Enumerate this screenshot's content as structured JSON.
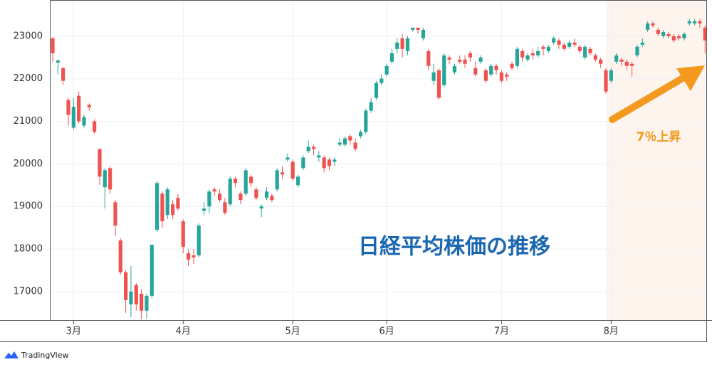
{
  "chart_data": {
    "type": "candlestick",
    "title": "日経平均株価の推移",
    "annotation": "7％上昇",
    "source": "TradingView",
    "up_color": "#26a69a",
    "down_color": "#ef5350",
    "title_color": "#1a66b0",
    "annotation_color": "#f39a1e",
    "grid": true,
    "ylim": [
      16330,
      23850
    ],
    "yticks": [
      17000,
      18000,
      19000,
      20000,
      21000,
      22000,
      23000
    ],
    "categories": [
      null,
      null,
      null,
      null,
      "3月",
      null,
      null,
      null,
      null,
      null,
      null,
      null,
      null,
      null,
      null,
      null,
      null,
      null,
      null,
      null,
      null,
      null,
      null,
      null,
      null,
      "4月",
      null,
      null,
      null,
      null,
      null,
      null,
      null,
      null,
      null,
      null,
      null,
      null,
      null,
      null,
      null,
      null,
      null,
      null,
      null,
      null,
      "5月",
      null,
      null,
      null,
      null,
      null,
      null,
      null,
      null,
      null,
      null,
      null,
      null,
      null,
      null,
      null,
      null,
      null,
      "6月",
      null,
      null,
      null,
      null,
      null,
      null,
      null,
      null,
      null,
      null,
      null,
      null,
      null,
      null,
      null,
      null,
      null,
      null,
      null,
      null,
      null,
      "7月",
      null,
      null,
      null,
      null,
      null,
      null,
      null,
      null,
      null,
      null,
      null,
      null,
      null,
      null,
      null,
      null,
      null,
      null,
      null,
      null,
      "8月",
      null,
      null,
      null,
      null,
      null,
      null,
      null,
      null,
      null,
      null,
      null,
      null,
      null,
      null,
      null,
      null,
      null,
      null
    ],
    "open": [
      22950,
      22380,
      22250,
      21500,
      20850,
      21600,
      20900,
      21380,
      21000,
      20350,
      19450,
      19900,
      19100,
      18200,
      17450,
      16700,
      17150,
      16950,
      16550,
      16900,
      18450,
      19300,
      18800,
      19050,
      19200,
      18650,
      17900,
      17850,
      17850,
      18900,
      19000,
      19400,
      19300,
      19100,
      19050,
      19650,
      19300,
      19300,
      19700,
      19400,
      18950,
      19200,
      19250,
      19400,
      19800,
      20100,
      20050,
      19500,
      19900,
      20300,
      20400,
      20150,
      20150,
      20100,
      20050,
      20450,
      20450,
      20650,
      20500,
      20650,
      20750,
      21250,
      21550,
      21900,
      22100,
      22400,
      22700,
      22950,
      22650,
      23150,
      23200,
      22950,
      22650,
      21950,
      22200,
      21850,
      22500,
      22150,
      22450,
      22450,
      22600,
      22250,
      22400,
      22200,
      22100,
      22300,
      22150,
      22100,
      22350,
      22300,
      22650,
      22450,
      22600,
      22550,
      22750,
      22650,
      22850,
      22900,
      22800,
      22750,
      22850,
      22750,
      22500,
      22700,
      22550,
      22450,
      22200,
      21950,
      22400,
      22450,
      22400,
      22350,
      22550,
      22800,
      23150,
      23300,
      23150,
      23000,
      23050,
      23000,
      23000,
      22950,
      23300,
      23300,
      23350,
      23200
    ],
    "high": [
      22980,
      22450,
      22280,
      21550,
      21550,
      21700,
      21150,
      21420,
      21050,
      20350,
      19900,
      19950,
      19150,
      18250,
      17500,
      17600,
      17200,
      17050,
      16950,
      18100,
      19600,
      19350,
      19450,
      19150,
      19300,
      18700,
      18000,
      18000,
      18600,
      19100,
      19400,
      19450,
      19400,
      19200,
      19700,
      19700,
      19350,
      19900,
      19750,
      19450,
      19050,
      19450,
      19300,
      19900,
      19950,
      20250,
      20100,
      19750,
      20200,
      20550,
      20450,
      20300,
      20200,
      20150,
      20150,
      20600,
      20650,
      20700,
      20600,
      20800,
      21300,
      21550,
      21950,
      22100,
      22350,
      22700,
      22950,
      23050,
      23000,
      23200,
      23200,
      23200,
      22700,
      22350,
      22250,
      22600,
      22550,
      22350,
      22550,
      22550,
      22650,
      22400,
      22550,
      22250,
      22350,
      22350,
      22200,
      22150,
      22400,
      22750,
      22700,
      22600,
      22700,
      22750,
      22800,
      22800,
      23000,
      22950,
      22850,
      22900,
      22950,
      22800,
      22800,
      22750,
      22600,
      22500,
      22250,
      22250,
      22600,
      22500,
      22450,
      22400,
      22800,
      22950,
      23350,
      23350,
      23200,
      23150,
      23100,
      23050,
      23050,
      23100,
      23400,
      23400,
      23400,
      23250
    ],
    "low": [
      22400,
      22100,
      21850,
      20900,
      20800,
      20950,
      20850,
      21250,
      20700,
      19500,
      18950,
      19300,
      18300,
      17400,
      16500,
      16400,
      16550,
      16350,
      16350,
      16850,
      18400,
      18500,
      18700,
      18700,
      18900,
      17900,
      17600,
      17650,
      17800,
      18800,
      18850,
      19250,
      19100,
      18800,
      19000,
      19450,
      19050,
      19250,
      19450,
      19150,
      18750,
      19150,
      19100,
      19350,
      19650,
      20050,
      19600,
      19450,
      19850,
      20250,
      20200,
      20050,
      19800,
      19850,
      19950,
      20400,
      20400,
      20450,
      20300,
      20600,
      20700,
      21200,
      21500,
      21850,
      22050,
      22350,
      22600,
      22500,
      22550,
      23100,
      23050,
      22900,
      22200,
      21850,
      21500,
      21800,
      22350,
      22100,
      22350,
      22250,
      22400,
      22050,
      22350,
      21900,
      22050,
      22100,
      21900,
      21950,
      22200,
      22250,
      22400,
      22400,
      22450,
      22500,
      22550,
      22600,
      22800,
      22700,
      22650,
      22700,
      22750,
      22600,
      22450,
      22550,
      22400,
      22250,
      21650,
      21900,
      22350,
      22300,
      22200,
      22050,
      22500,
      22750,
      23100,
      23200,
      23000,
      22950,
      22950,
      22850,
      22900,
      22900,
      23250,
      23250,
      23200,
      22600
    ],
    "close": [
      22600,
      22430,
      21950,
      21150,
      21340,
      21000,
      21100,
      21330,
      20750,
      19700,
      19850,
      19400,
      18550,
      17450,
      16800,
      17000,
      16700,
      16550,
      16900,
      18100,
      19550,
      18650,
      19400,
      18800,
      18950,
      18050,
      17750,
      17800,
      18550,
      18950,
      19350,
      19350,
      19150,
      18850,
      19650,
      19550,
      19150,
      19850,
      19550,
      19200,
      19000,
      19350,
      19150,
      19850,
      19750,
      20150,
      19650,
      19700,
      20150,
      20400,
      20350,
      20200,
      19900,
      19950,
      20100,
      20500,
      20600,
      20550,
      20350,
      20750,
      21250,
      21450,
      21900,
      22000,
      22300,
      22600,
      22850,
      22700,
      22950,
      23200,
      23150,
      23150,
      22300,
      22150,
      21550,
      22550,
      22450,
      22300,
      22400,
      22350,
      22500,
      22100,
      22500,
      21950,
      22300,
      22200,
      21950,
      22050,
      22250,
      22700,
      22500,
      22550,
      22550,
      22650,
      22700,
      22750,
      22950,
      22800,
      22700,
      22850,
      22800,
      22650,
      22750,
      22600,
      22450,
      22350,
      21700,
      22200,
      22550,
      22400,
      22300,
      22300,
      22750,
      22850,
      23300,
      23250,
      23050,
      23100,
      23000,
      22900,
      22950,
      23050,
      23350,
      23350,
      23300,
      22900
    ]
  }
}
